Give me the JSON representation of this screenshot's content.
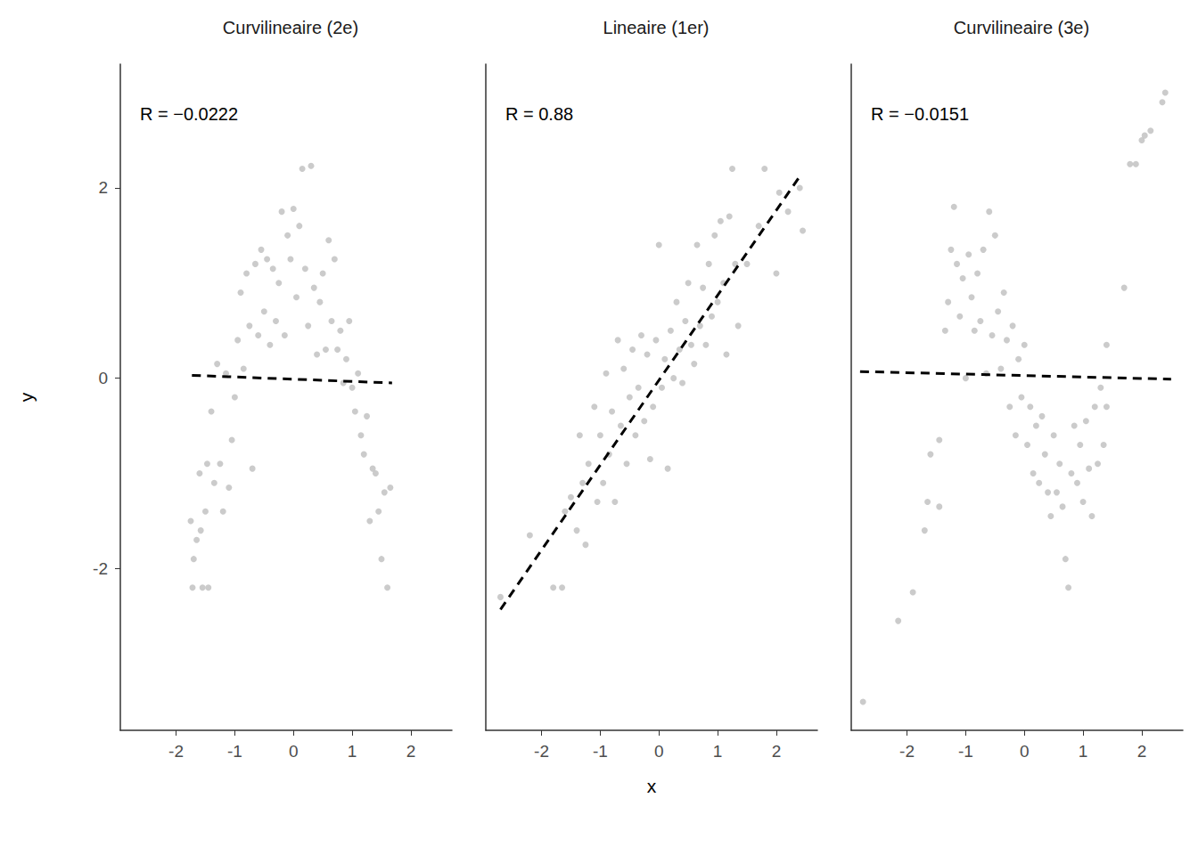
{
  "chart_data": [
    {
      "type": "scatter",
      "title": "Curvilineaire (2e)",
      "annotation": "R = −0.0222",
      "ylabel": "y",
      "xlim": [
        -2.95,
        2.7
      ],
      "xticks": [
        -2,
        -1,
        0,
        1,
        2
      ],
      "ylim": [
        -3.7,
        3.3
      ],
      "yticks": [
        -2,
        0,
        2
      ],
      "grid": false,
      "series": [
        {
          "type": "scatter",
          "color": "#bebebe",
          "marker": "circle",
          "x": [
            -1.75,
            -1.72,
            -1.7,
            -1.65,
            -1.6,
            -1.58,
            -1.55,
            -1.5,
            -1.47,
            -1.45,
            -1.4,
            -1.35,
            -1.3,
            -1.25,
            -1.2,
            -1.15,
            -1.1,
            -1.05,
            -1.0,
            -0.95,
            -0.9,
            -0.85,
            -0.8,
            -0.75,
            -0.7,
            -0.65,
            -0.6,
            -0.55,
            -0.5,
            -0.45,
            -0.4,
            -0.35,
            -0.3,
            -0.25,
            -0.2,
            -0.15,
            -0.1,
            -0.05,
            0.0,
            0.05,
            0.1,
            0.15,
            0.2,
            0.25,
            0.3,
            0.35,
            0.4,
            0.45,
            0.5,
            0.55,
            0.6,
            0.65,
            0.7,
            0.75,
            0.8,
            0.85,
            0.9,
            0.95,
            1.0,
            1.05,
            1.1,
            1.15,
            1.2,
            1.25,
            1.3,
            1.35,
            1.4,
            1.45,
            1.5,
            1.55,
            1.6,
            1.65
          ],
          "values": [
            -1.5,
            -2.2,
            -1.9,
            -1.7,
            -1.0,
            -1.6,
            -2.2,
            -1.4,
            -0.9,
            -2.2,
            -0.35,
            -1.1,
            0.15,
            -0.9,
            -1.4,
            0.05,
            -1.15,
            -0.65,
            -0.2,
            0.4,
            0.9,
            0.1,
            1.1,
            0.55,
            -0.95,
            1.2,
            0.45,
            1.35,
            0.7,
            1.25,
            0.35,
            1.15,
            0.6,
            1.0,
            1.75,
            0.45,
            1.5,
            1.25,
            1.78,
            0.85,
            1.6,
            2.2,
            1.15,
            0.55,
            2.23,
            0.95,
            0.25,
            0.8,
            1.1,
            0.3,
            1.45,
            0.6,
            1.25,
            0.3,
            0.5,
            -0.05,
            0.2,
            0.6,
            -0.1,
            -0.35,
            0.05,
            -0.6,
            -0.8,
            -0.4,
            -1.5,
            -0.95,
            -1.0,
            -1.4,
            -1.9,
            -1.2,
            -2.2,
            -1.15
          ]
        },
        {
          "type": "line",
          "color": "#000000",
          "line_style": "dashed",
          "x": [
            -1.73,
            1.68
          ],
          "values": [
            0.03,
            -0.05
          ]
        }
      ]
    },
    {
      "type": "scatter",
      "title": "Lineaire (1er)",
      "annotation": "R = 0.88",
      "xlabel": "x",
      "tick_labels": "x",
      "xlim": [
        -2.95,
        2.7
      ],
      "xticks": [
        -2,
        -1,
        0,
        1,
        2
      ],
      "ylim": [
        -3.7,
        3.3
      ],
      "yticks": [
        -2,
        0,
        2
      ],
      "grid": false,
      "series": [
        {
          "type": "scatter",
          "color": "#bebebe",
          "marker": "circle",
          "x": [
            -2.7,
            -2.2,
            -1.8,
            -1.65,
            -1.6,
            -1.5,
            -1.4,
            -1.35,
            -1.3,
            -1.25,
            -1.2,
            -1.1,
            -1.05,
            -1.0,
            -0.95,
            -0.9,
            -0.85,
            -0.8,
            -0.75,
            -0.7,
            -0.65,
            -0.6,
            -0.55,
            -0.5,
            -0.45,
            -0.4,
            -0.35,
            -0.3,
            -0.25,
            -0.2,
            -0.15,
            -0.1,
            -0.05,
            0.0,
            0.05,
            0.1,
            0.15,
            0.2,
            0.25,
            0.3,
            0.35,
            0.4,
            0.45,
            0.5,
            0.55,
            0.6,
            0.65,
            0.7,
            0.75,
            0.8,
            0.85,
            0.9,
            0.95,
            1.0,
            1.05,
            1.1,
            1.15,
            1.2,
            1.25,
            1.3,
            1.35,
            1.5,
            1.7,
            1.8,
            2.0,
            2.05,
            2.2,
            2.4,
            2.45
          ],
          "values": [
            -2.3,
            -1.65,
            -2.2,
            -2.2,
            -1.4,
            -1.25,
            -1.6,
            -0.6,
            -1.1,
            -1.75,
            -0.9,
            -0.3,
            -1.3,
            -0.6,
            -1.1,
            0.05,
            -0.8,
            -0.35,
            -1.3,
            0.4,
            -0.5,
            0.1,
            -0.9,
            -0.2,
            0.3,
            -0.6,
            -0.1,
            0.45,
            -0.45,
            0.25,
            -0.85,
            -0.3,
            0.4,
            1.4,
            -0.1,
            0.2,
            -0.95,
            0.5,
            0.0,
            0.8,
            0.3,
            -0.05,
            0.6,
            1.0,
            0.35,
            0.15,
            1.4,
            0.55,
            0.95,
            0.35,
            1.2,
            0.65,
            1.5,
            0.8,
            1.65,
            1.0,
            0.25,
            1.7,
            2.2,
            1.2,
            0.55,
            1.2,
            1.6,
            2.2,
            1.1,
            1.95,
            1.75,
            2.0,
            1.55
          ]
        },
        {
          "type": "line",
          "color": "#000000",
          "line_style": "dashed",
          "x": [
            -2.7,
            2.4
          ],
          "values": [
            -2.43,
            2.12
          ]
        }
      ]
    },
    {
      "type": "scatter",
      "title": "Curvilineaire (3e)",
      "annotation": "R = −0.0151",
      "tick_labels": "x",
      "xlim": [
        -2.95,
        2.7
      ],
      "xticks": [
        -2,
        -1,
        0,
        1,
        2
      ],
      "ylim": [
        -3.7,
        3.3
      ],
      "yticks": [
        -2,
        0,
        2
      ],
      "grid": false,
      "series": [
        {
          "type": "scatter",
          "color": "#bebebe",
          "marker": "circle",
          "x": [
            -2.75,
            -2.15,
            -1.9,
            -1.7,
            -1.65,
            -1.6,
            -1.45,
            -1.45,
            -1.35,
            -1.3,
            -1.25,
            -1.2,
            -1.15,
            -1.1,
            -1.05,
            -1.0,
            -0.95,
            -0.9,
            -0.85,
            -0.8,
            -0.75,
            -0.7,
            -0.65,
            -0.6,
            -0.55,
            -0.5,
            -0.45,
            -0.4,
            -0.35,
            -0.3,
            -0.25,
            -0.2,
            -0.15,
            -0.1,
            -0.05,
            0.0,
            0.05,
            0.1,
            0.15,
            0.2,
            0.25,
            0.3,
            0.35,
            0.4,
            0.45,
            0.5,
            0.55,
            0.6,
            0.65,
            0.7,
            0.75,
            0.8,
            0.85,
            0.9,
            0.95,
            1.0,
            1.05,
            1.1,
            1.15,
            1.2,
            1.25,
            1.3,
            1.35,
            1.4,
            1.4,
            1.7,
            1.8,
            1.9,
            2.0,
            2.05,
            2.15,
            2.35,
            2.4
          ],
          "values": [
            -3.4,
            -2.55,
            -2.25,
            -1.6,
            -1.3,
            -0.8,
            -0.65,
            -1.35,
            0.5,
            0.8,
            1.35,
            1.8,
            1.2,
            0.65,
            1.05,
            0.0,
            1.3,
            0.85,
            0.5,
            1.1,
            0.6,
            1.35,
            0.05,
            1.75,
            0.45,
            1.5,
            0.7,
            0.1,
            0.9,
            0.4,
            -0.3,
            0.55,
            -0.6,
            0.2,
            -0.2,
            0.35,
            -0.7,
            -0.3,
            -1.0,
            -0.5,
            -1.1,
            -0.4,
            -0.8,
            -1.2,
            -1.45,
            -0.6,
            -1.2,
            -0.9,
            -1.35,
            -1.9,
            -2.2,
            -1.0,
            -0.5,
            -1.1,
            -0.7,
            -1.3,
            -0.45,
            -0.95,
            -1.45,
            -0.3,
            -0.9,
            -0.1,
            -0.7,
            0.35,
            -0.3,
            0.95,
            2.25,
            2.25,
            2.5,
            2.55,
            2.6,
            2.9,
            3.0
          ]
        },
        {
          "type": "line",
          "color": "#000000",
          "line_style": "dashed",
          "x": [
            -2.8,
            2.5
          ],
          "values": [
            0.07,
            -0.01
          ]
        }
      ]
    }
  ]
}
